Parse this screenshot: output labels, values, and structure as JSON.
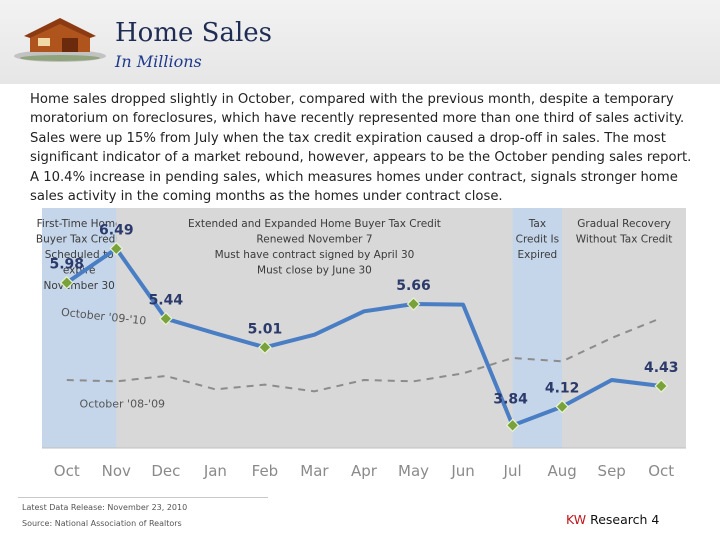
{
  "header": {
    "title": "Home Sales",
    "subtitle": "In Millions"
  },
  "body": {
    "paragraph": "Home sales dropped slightly in October, compared with the previous month, despite a temporary moratorium on foreclosures, which have recently represented more than one third of sales activity. Sales were up 15% from July when the tax credit expiration caused a drop-off in sales. The most significant indicator of a market rebound, however, appears to be the October pending sales report. A 10.4% increase in pending sales, which measures homes under contract, signals stronger home sales activity in the coming months as the homes under contract close."
  },
  "chart_data": {
    "type": "line",
    "categories": [
      "Oct",
      "Nov",
      "Dec",
      "Jan",
      "Feb",
      "Mar",
      "Apr",
      "May",
      "Jun",
      "Jul",
      "Aug",
      "Sep",
      "Oct"
    ],
    "series": [
      {
        "name": "October '09-'10",
        "values": [
          5.98,
          6.49,
          5.44,
          5.22,
          5.01,
          5.2,
          5.55,
          5.66,
          5.65,
          3.84,
          4.12,
          4.52,
          4.43
        ],
        "color": "#4a7ec4"
      },
      {
        "name": "October '08-'09",
        "values": [
          4.52,
          4.5,
          4.58,
          4.38,
          4.45,
          4.35,
          4.52,
          4.5,
          4.62,
          4.85,
          4.8,
          5.15,
          5.45
        ],
        "color": "#8c8c8c",
        "dashed": true
      }
    ],
    "data_labels": [
      {
        "index": 0,
        "text": "5.98"
      },
      {
        "index": 1,
        "text": "6.49"
      },
      {
        "index": 2,
        "text": "5.44"
      },
      {
        "index": 4,
        "text": "5.01"
      },
      {
        "index": 7,
        "text": "5.66"
      },
      {
        "index": 9,
        "text": "3.84"
      },
      {
        "index": 10,
        "text": "4.12"
      },
      {
        "index": 12,
        "text": "4.43"
      }
    ],
    "series_labels": {
      "current": "October '09-'10",
      "previous": "October '08-'09"
    },
    "ylim": [
      3.5,
      7.1
    ],
    "periods": [
      {
        "start": -0.5,
        "end": 1,
        "color": "#c6d6ea",
        "lines": [
          "First-Time Home",
          "Buyer Tax Credit",
          "Scheduled to",
          "expire",
          "November 30"
        ]
      },
      {
        "start": 1,
        "end": 9,
        "color": "#d8d8d8",
        "lines": [
          "Extended and Expanded Home Buyer Tax Credit",
          "Renewed November 7",
          "Must have contract signed by April 30",
          "Must close by June 30"
        ]
      },
      {
        "start": 9,
        "end": 10,
        "color": "#c6d6ea",
        "lines": [
          "Tax",
          "Credit Is",
          "Expired"
        ]
      },
      {
        "start": 10,
        "end": 12.5,
        "color": "#d8d8d8",
        "lines": [
          "Gradual Recovery",
          "Without Tax Credit"
        ]
      }
    ]
  },
  "footer": {
    "release": "Latest Data Release: November 23, 2010",
    "source": "Source: National Association of Realtors",
    "brand": "KW",
    "brand_suffix": " Research 4"
  }
}
